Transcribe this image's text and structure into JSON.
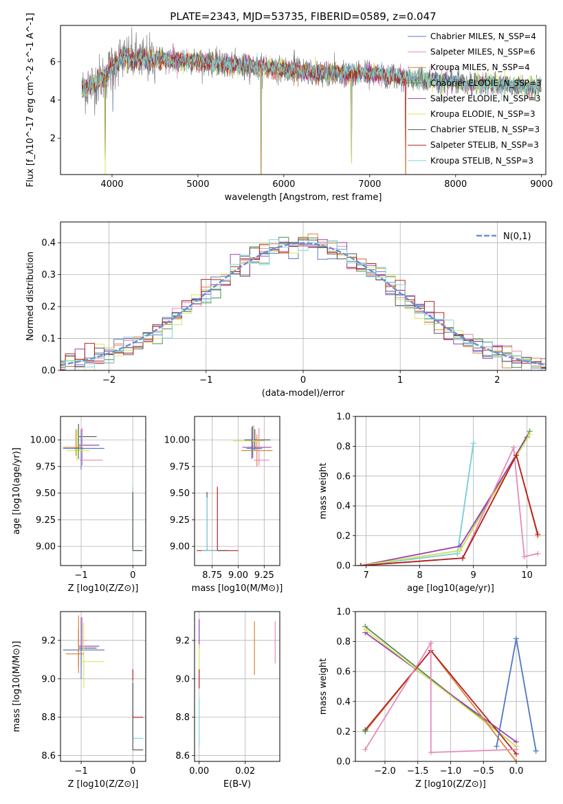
{
  "figure": {
    "title": "PLATE=2343, MJD=53735, FIBERID=0589, z=0.047"
  },
  "chart_data": [
    {
      "id": "spectrum",
      "type": "line",
      "xlabel": "wavelength [Angstrom, rest frame]",
      "ylabel": "Flux [f_λ10^-17 erg cm^-2 s^-1 A^-1]",
      "xlim": [
        3400,
        9050
      ],
      "ylim": [
        0.1,
        7.9
      ],
      "xticks": [
        4000,
        5000,
        6000,
        7000,
        8000,
        9000
      ],
      "yticks": [
        2,
        4,
        6
      ],
      "grid": false,
      "legend_position": "right",
      "legend": [
        {
          "text": "Chabrier MILES, N_SSP=4",
          "color": "#5778c4"
        },
        {
          "text": "Salpeter MILES, N_SSP=6",
          "color": "#e68ab9"
        },
        {
          "text": "Kroupa MILES, N_SSP=4",
          "color": "#d9843e"
        },
        {
          "text": "Chabrier ELODIE, N_SSP=3",
          "color": "#4f8a4f"
        },
        {
          "text": "Salpeter ELODIE, N_SSP=3",
          "color": "#9a3fb3"
        },
        {
          "text": "Kroupa ELODIE, N_SSP=3",
          "color": "#d7e85a"
        },
        {
          "text": "Chabrier STELIB, N_SSP=3",
          "color": "#555555"
        },
        {
          "text": "Salpeter STELIB, N_SSP=3",
          "color": "#b82020"
        },
        {
          "text": "Kroupa STELIB, N_SSP=3",
          "color": "#7fd7dd"
        }
      ],
      "data_wavelength_range": [
        3650,
        9000
      ],
      "approx_flux_profile": [
        [
          3650,
          4.5
        ],
        [
          3900,
          5.2
        ],
        [
          4100,
          6.2
        ],
        [
          4500,
          6.1
        ],
        [
          5000,
          6.0
        ],
        [
          5500,
          5.8
        ],
        [
          6000,
          5.6
        ],
        [
          6500,
          5.4
        ],
        [
          7000,
          5.4
        ],
        [
          7500,
          5.1
        ],
        [
          8000,
          4.9
        ],
        [
          8500,
          4.8
        ],
        [
          8900,
          4.7
        ]
      ],
      "dropouts": [
        [
          3920,
          0.1
        ],
        [
          4010,
          3.4
        ],
        [
          5735,
          0.1
        ],
        [
          6790,
          0.7
        ],
        [
          7420,
          0.1
        ]
      ]
    },
    {
      "id": "residuals",
      "type": "line",
      "xlabel": "(data-model)/error",
      "ylabel": "Normed distribution",
      "xlim": [
        -2.5,
        2.5
      ],
      "ylim": [
        0,
        0.465
      ],
      "xticks": [
        -2,
        -1,
        0,
        1,
        2
      ],
      "yticks": [
        0.0,
        0.1,
        0.2,
        0.3,
        0.4
      ],
      "grid": true,
      "legend_position": "top-right",
      "legend": [
        {
          "text": "N(0,1)",
          "color": "#6a8fd6"
        }
      ],
      "reference_curve": "normal(0,1) pdf",
      "histogram_bin_width": 0.1
    },
    {
      "id": "age-vs-z",
      "type": "scatter",
      "xlabel": "Z [log10(Z/Z⊙)]",
      "ylabel": "age  [log10(age/yr)]",
      "xlim": [
        -1.4,
        0.25
      ],
      "ylim": [
        8.82,
        10.22
      ],
      "xticks": [
        -1,
        0
      ],
      "yticks": [
        9.0,
        9.25,
        9.5,
        9.75,
        10.0
      ],
      "grid": true,
      "errorbars": [
        {
          "x": -1.05,
          "y": 10.03,
          "xerr": [
            0.0,
            0.35
          ],
          "yerr": [
            0.13,
            0.12
          ],
          "color": "#555555"
        },
        {
          "x": -1.0,
          "y": 9.95,
          "xerr": [
            0.05,
            0.35
          ],
          "yerr": [
            0.15,
            0.15
          ],
          "color": "#9a3fb3"
        },
        {
          "x": -1.0,
          "y": 9.92,
          "xerr": [
            0.35,
            0.45
          ],
          "yerr": [
            0.2,
            0.15
          ],
          "color": "#5778c4"
        },
        {
          "x": -0.98,
          "y": 9.81,
          "xerr": [
            0.05,
            0.4
          ],
          "yerr": [
            0.05,
            0.3
          ],
          "color": "#e68ab9"
        },
        {
          "x": -1.08,
          "y": 9.9,
          "xerr": [
            0.2,
            0.25
          ],
          "yerr": [
            0.1,
            0.2
          ],
          "color": "#d7e85a"
        },
        {
          "x": -1.1,
          "y": 9.93,
          "xerr": [
            0.25,
            0.1
          ],
          "yerr": [
            0.08,
            0.17
          ],
          "color": "#d9843e"
        },
        {
          "x": -1.05,
          "y": 9.92,
          "xerr": [
            0.1,
            0.1
          ],
          "yerr": [
            0.1,
            0.18
          ],
          "color": "#4f8a4f"
        },
        {
          "x": 0.0,
          "y": 8.96,
          "xerr": [
            0.0,
            0.2
          ],
          "yerr": [
            0.0,
            0.6
          ],
          "color": "#7fd7dd"
        },
        {
          "x": 0.0,
          "y": 8.96,
          "xerr": [
            0.0,
            0.18
          ],
          "yerr": [
            0.0,
            0.55
          ],
          "color": "#555555"
        }
      ]
    },
    {
      "id": "age-vs-mass",
      "type": "scatter",
      "xlabel": "mass [log10(M/M⊙)]",
      "ylabel": "",
      "xlim": [
        8.58,
        9.4
      ],
      "ylim": [
        8.82,
        10.22
      ],
      "xticks": [
        8.75,
        9.0,
        9.25
      ],
      "yticks": [
        9.0,
        9.25,
        9.5,
        9.75,
        10.0
      ],
      "grid": true,
      "errorbars": [
        {
          "x": 9.16,
          "y": 10.0,
          "xerr": [
            0.1,
            0.15
          ],
          "yerr": [
            0.1,
            0.1
          ],
          "color": "#555555"
        },
        {
          "x": 9.14,
          "y": 9.93,
          "xerr": [
            0.1,
            0.18
          ],
          "yerr": [
            0.1,
            0.2
          ],
          "color": "#9a3fb3"
        },
        {
          "x": 9.18,
          "y": 9.9,
          "xerr": [
            0.15,
            0.15
          ],
          "yerr": [
            0.15,
            0.15
          ],
          "color": "#d9843e"
        },
        {
          "x": 9.15,
          "y": 9.99,
          "xerr": [
            0.2,
            0.1
          ],
          "yerr": [
            0.1,
            0.15
          ],
          "color": "#d7e85a"
        },
        {
          "x": 9.2,
          "y": 9.81,
          "xerr": [
            0.05,
            0.1
          ],
          "yerr": [
            0.05,
            0.3
          ],
          "color": "#e68ab9"
        },
        {
          "x": 9.13,
          "y": 9.92,
          "xerr": [
            0.05,
            0.1
          ],
          "yerr": [
            0.1,
            0.2
          ],
          "color": "#5778c4"
        },
        {
          "x": 8.8,
          "y": 8.96,
          "xerr": [
            0.2,
            0.2
          ],
          "yerr": [
            0.0,
            0.6
          ],
          "color": "#b82020"
        },
        {
          "x": 8.7,
          "y": 8.96,
          "xerr": [
            0.05,
            0.2
          ],
          "yerr": [
            0.0,
            0.55
          ],
          "color": "#555555"
        },
        {
          "x": 8.7,
          "y": 8.96,
          "xerr": [
            0.05,
            0.1
          ],
          "yerr": [
            0.0,
            0.5
          ],
          "color": "#7fd7dd"
        }
      ]
    },
    {
      "id": "massweight-vs-age",
      "type": "line",
      "xlabel": "age  [log10(age/yr)]",
      "ylabel": "mass weight",
      "xlim": [
        6.8,
        10.35
      ],
      "ylim": [
        0.0,
        1.0
      ],
      "xticks": [
        7,
        8,
        9,
        10
      ],
      "yticks": [
        0.0,
        0.2,
        0.4,
        0.6,
        0.8,
        1.0
      ],
      "grid": true,
      "series": [
        {
          "color": "#5778c4",
          "x": [
            6.9,
            8.7,
            9.0
          ],
          "y": [
            0.0,
            0.08,
            0.82
          ]
        },
        {
          "color": "#7fd7dd",
          "x": [
            6.9,
            8.7,
            9.0
          ],
          "y": [
            0.0,
            0.08,
            0.82
          ]
        },
        {
          "color": "#4f8a4f",
          "x": [
            6.9,
            8.75,
            10.05
          ],
          "y": [
            0.0,
            0.1,
            0.9
          ]
        },
        {
          "color": "#9a3fb3",
          "x": [
            6.9,
            8.75,
            10.0
          ],
          "y": [
            0.0,
            0.13,
            0.86
          ]
        },
        {
          "color": "#d7e85a",
          "x": [
            6.9,
            8.75,
            10.05
          ],
          "y": [
            0.0,
            0.1,
            0.88
          ]
        },
        {
          "color": "#d9843e",
          "x": [
            6.9,
            8.8,
            9.8,
            10.2
          ],
          "y": [
            0.0,
            0.05,
            0.74,
            0.2
          ]
        },
        {
          "color": "#e68ab9",
          "x": [
            6.9,
            8.8,
            9.75,
            9.95,
            10.2
          ],
          "y": [
            0.0,
            0.05,
            0.79,
            0.06,
            0.08
          ]
        },
        {
          "color": "#b82020",
          "x": [
            6.9,
            8.8,
            9.8,
            10.2
          ],
          "y": [
            0.0,
            0.05,
            0.74,
            0.21
          ]
        }
      ]
    },
    {
      "id": "mass-vs-z",
      "type": "scatter",
      "xlabel": "Z [log10(Z/Z⊙)]",
      "ylabel": "mass [log10(M/M⊙)]",
      "xlim": [
        -1.4,
        0.25
      ],
      "ylim": [
        8.57,
        9.35
      ],
      "xticks": [
        -1,
        0
      ],
      "yticks": [
        8.6,
        8.8,
        9.0,
        9.2
      ],
      "grid": true,
      "errorbars": [
        {
          "x": -1.05,
          "y": 9.16,
          "xerr": [
            0.0,
            0.35
          ],
          "yerr": [
            0.1,
            0.1
          ],
          "color": "#555555"
        },
        {
          "x": -1.0,
          "y": 9.17,
          "xerr": [
            0.05,
            0.35
          ],
          "yerr": [
            0.1,
            0.15
          ],
          "color": "#9a3fb3"
        },
        {
          "x": -1.0,
          "y": 9.15,
          "xerr": [
            0.35,
            0.45
          ],
          "yerr": [
            0.15,
            0.15
          ],
          "color": "#5778c4"
        },
        {
          "x": -0.95,
          "y": 9.09,
          "xerr": [
            0.05,
            0.4
          ],
          "yerr": [
            0.14,
            0.2
          ],
          "color": "#d7e85a"
        },
        {
          "x": -1.05,
          "y": 9.13,
          "xerr": [
            0.25,
            0.1
          ],
          "yerr": [
            0.1,
            0.2
          ],
          "color": "#d9843e"
        },
        {
          "x": -0.98,
          "y": 9.2,
          "xerr": [
            0.05,
            0.1
          ],
          "yerr": [
            0.05,
            0.12
          ],
          "color": "#e68ab9"
        },
        {
          "x": 0.0,
          "y": 8.8,
          "xerr": [
            0.0,
            0.2
          ],
          "yerr": [
            0.0,
            0.25
          ],
          "color": "#b82020"
        },
        {
          "x": 0.0,
          "y": 8.69,
          "xerr": [
            0.0,
            0.2
          ],
          "yerr": [
            0.0,
            0.3
          ],
          "color": "#7fd7dd"
        },
        {
          "x": 0.0,
          "y": 8.63,
          "xerr": [
            0.0,
            0.2
          ],
          "yerr": [
            0.0,
            0.35
          ],
          "color": "#555555"
        }
      ]
    },
    {
      "id": "mass-vs-ebv",
      "type": "scatter",
      "xlabel": "E(B-V)",
      "ylabel": "",
      "xlim": [
        -0.002,
        0.035
      ],
      "ylim": [
        8.57,
        9.35
      ],
      "xticks": [
        0.0,
        0.02
      ],
      "yticks": [
        8.6,
        8.8,
        9.0,
        9.2
      ],
      "grid": true,
      "errorbars": [
        {
          "x": 0.0,
          "y": 9.16,
          "xerr": [
            0,
            0
          ],
          "yerr": [
            0.0,
            0.15
          ],
          "color": "#9a3fb3"
        },
        {
          "x": 0.0,
          "y": 9.05,
          "xerr": [
            0,
            0
          ],
          "yerr": [
            0.0,
            0.13
          ],
          "color": "#d7e85a"
        },
        {
          "x": 0.0,
          "y": 8.95,
          "xerr": [
            0,
            0
          ],
          "yerr": [
            0.0,
            0.1
          ],
          "color": "#b82020"
        },
        {
          "x": 0.0,
          "y": 8.8,
          "xerr": [
            0,
            0
          ],
          "yerr": [
            0.15,
            0.1
          ],
          "color": "#7fd7dd"
        },
        {
          "x": 0.024,
          "y": 9.15,
          "xerr": [
            0,
            0
          ],
          "yerr": [
            0.13,
            0.15
          ],
          "color": "#d9843e"
        },
        {
          "x": 0.033,
          "y": 9.2,
          "xerr": [
            0,
            0
          ],
          "yerr": [
            0.12,
            0.1
          ],
          "color": "#e68ab9"
        }
      ]
    },
    {
      "id": "massweight-vs-z",
      "type": "line",
      "xlabel": "Z [log10(Z/Z⊙)]",
      "ylabel": "mass weight",
      "xlim": [
        -2.45,
        0.45
      ],
      "ylim": [
        0.0,
        1.0
      ],
      "xticks": [
        -2.0,
        -1.5,
        -1.0,
        -0.5,
        0.0
      ],
      "yticks": [
        0.0,
        0.2,
        0.4,
        0.6,
        0.8,
        1.0
      ],
      "grid": true,
      "series": [
        {
          "color": "#4f8a4f",
          "x": [
            -2.3,
            0.0
          ],
          "y": [
            0.9,
            0.1
          ]
        },
        {
          "color": "#9a3fb3",
          "x": [
            -2.3,
            0.0
          ],
          "y": [
            0.86,
            0.13
          ]
        },
        {
          "color": "#d7e85a",
          "x": [
            -2.3,
            0.0
          ],
          "y": [
            0.88,
            0.1
          ]
        },
        {
          "color": "#d9843e",
          "x": [
            -2.3,
            -1.3,
            0.0
          ],
          "y": [
            0.2,
            0.74,
            0.0
          ]
        },
        {
          "color": "#b82020",
          "x": [
            -2.3,
            -1.3,
            0.0
          ],
          "y": [
            0.21,
            0.74,
            0.05
          ]
        },
        {
          "color": "#e68ab9",
          "x": [
            -2.3,
            -1.3,
            -1.3,
            0.0
          ],
          "y": [
            0.08,
            0.79,
            0.06,
            0.08
          ]
        },
        {
          "color": "#7fd7dd",
          "x": [
            -0.3,
            0.0,
            0.3
          ],
          "y": [
            0.1,
            0.82,
            0.07
          ]
        },
        {
          "color": "#5778c4",
          "x": [
            -0.3,
            0.0,
            0.3
          ],
          "y": [
            0.1,
            0.82,
            0.07
          ]
        },
        {
          "color": "#4f8a4f",
          "x": [
            -2.3,
            -2.3
          ],
          "y": [
            0.21,
            0.2
          ]
        }
      ]
    }
  ]
}
